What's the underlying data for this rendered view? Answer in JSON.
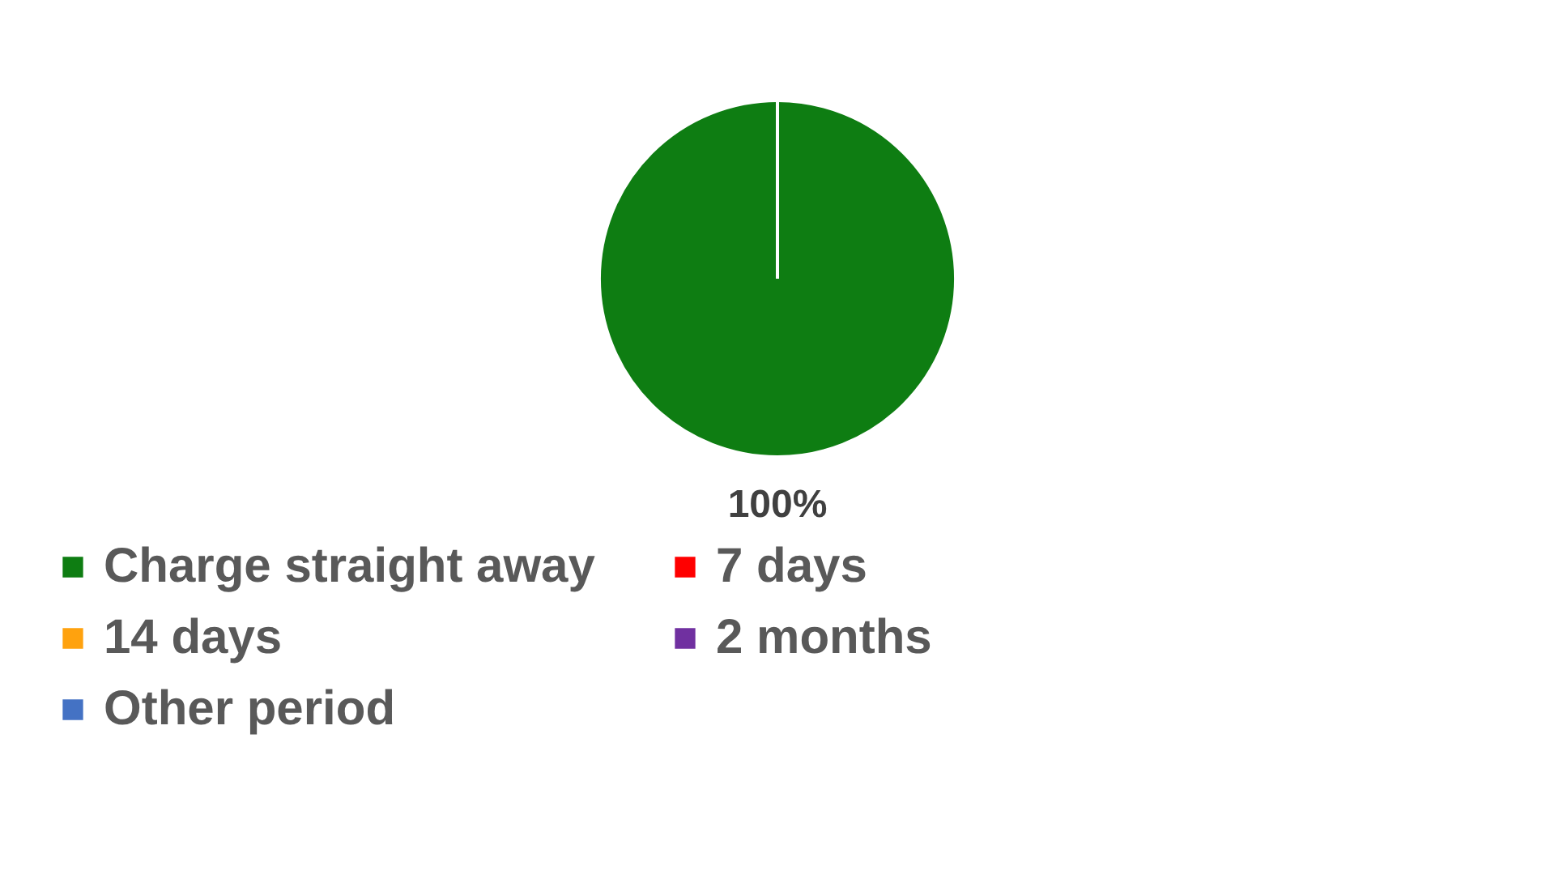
{
  "chart_data": {
    "type": "pie",
    "categories": [
      "Charge straight away",
      "7 days",
      "14 days",
      "2 months",
      "Other period"
    ],
    "values": [
      100,
      0,
      0,
      0,
      0
    ],
    "colors": [
      "#0e7d12",
      "#ff0000",
      "#ffa20e",
      "#7030a0",
      "#4472c4"
    ],
    "value_labels": [
      "100%",
      null,
      null,
      null,
      null
    ],
    "legend": "bottom"
  }
}
